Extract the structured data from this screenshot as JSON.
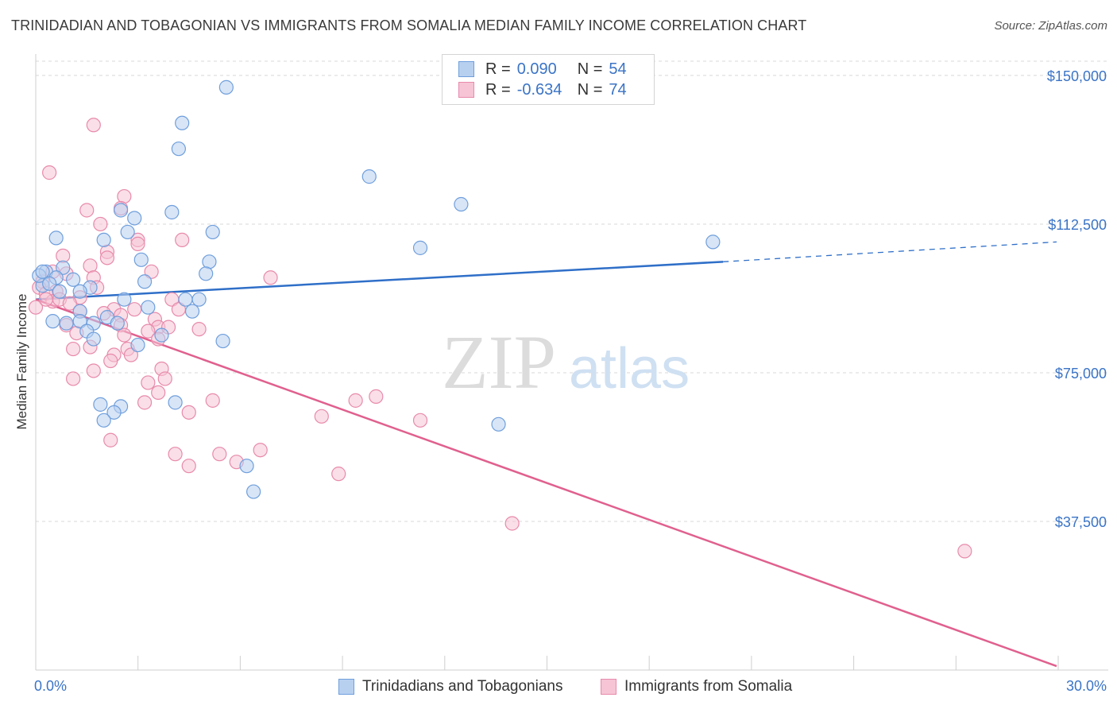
{
  "title": "TRINIDADIAN AND TOBAGONIAN VS IMMIGRANTS FROM SOMALIA MEDIAN FAMILY INCOME CORRELATION CHART",
  "source": "Source: ZipAtlas.com",
  "watermark": {
    "zip": "ZIP",
    "atlas": "atlas"
  },
  "legend": {
    "series1": {
      "r_label": "R =",
      "r_value": "0.090",
      "n_label": "N =",
      "n_value": "54"
    },
    "series2": {
      "r_label": "R =",
      "r_value": "-0.634",
      "n_label": "N =",
      "n_value": "74"
    }
  },
  "bottom_legend": {
    "series1": "Trinidadians and Tobagonians",
    "series2": "Immigrants from Somalia"
  },
  "colors": {
    "blue_fill": "#b8d0f0",
    "blue_stroke": "#6f9fdc",
    "blue_line": "#2f6fc8",
    "pink_fill": "#f6c4d5",
    "pink_stroke": "#e88aab",
    "pink_line": "#e0608e",
    "axis_text": "#3b74c6",
    "grid": "#d8d8d8"
  },
  "chart_data": {
    "type": "scatter",
    "title": "TRINIDADIAN AND TOBAGONIAN VS IMMIGRANTS FROM SOMALIA MEDIAN FAMILY INCOME CORRELATION CHART",
    "xlabel": "",
    "ylabel": "Median Family Income",
    "xlim": [
      0,
      30
    ],
    "ylim": [
      0,
      155000
    ],
    "x_tick_labels": [
      "0.0%",
      "30.0%"
    ],
    "y_ticks": [
      37500,
      75000,
      112500,
      150000
    ],
    "y_tick_labels": [
      "$37,500",
      "$75,000",
      "$112,500",
      "$150,000"
    ],
    "grid": "horizontal dashed",
    "series": [
      {
        "name": "Trinidadians and Tobagonians",
        "color": "blue",
        "trend": {
          "x": [
            0,
            20.2
          ],
          "y": [
            93500,
            103000
          ],
          "dashed_extension_to_x": 30,
          "dashed_end_y": 108000
        },
        "points": [
          [
            5.6,
            147000
          ],
          [
            4.3,
            138000
          ],
          [
            4.2,
            131500
          ],
          [
            9.8,
            124500
          ],
          [
            12.5,
            117500
          ],
          [
            2.5,
            116000
          ],
          [
            4.0,
            115500
          ],
          [
            2.9,
            114000
          ],
          [
            0.6,
            109000
          ],
          [
            2.0,
            108500
          ],
          [
            2.7,
            110500
          ],
          [
            5.2,
            110500
          ],
          [
            11.3,
            106500
          ],
          [
            19.9,
            108000
          ],
          [
            3.1,
            103500
          ],
          [
            5.1,
            103000
          ],
          [
            0.8,
            101500
          ],
          [
            5.0,
            100000
          ],
          [
            0.3,
            100500
          ],
          [
            0.6,
            99000
          ],
          [
            1.1,
            98500
          ],
          [
            3.2,
            98000
          ],
          [
            0.2,
            97000
          ],
          [
            1.6,
            96500
          ],
          [
            1.3,
            95500
          ],
          [
            2.6,
            93500
          ],
          [
            4.4,
            93500
          ],
          [
            4.8,
            93500
          ],
          [
            1.3,
            90500
          ],
          [
            3.3,
            91500
          ],
          [
            4.6,
            90500
          ],
          [
            0.5,
            88000
          ],
          [
            1.3,
            88000
          ],
          [
            2.1,
            89000
          ],
          [
            0.9,
            87500
          ],
          [
            1.7,
            87500
          ],
          [
            2.4,
            87500
          ],
          [
            1.5,
            85500
          ],
          [
            3.7,
            84500
          ],
          [
            1.7,
            83500
          ],
          [
            5.5,
            83000
          ],
          [
            3.0,
            82000
          ],
          [
            1.9,
            67000
          ],
          [
            2.5,
            66500
          ],
          [
            4.1,
            67500
          ],
          [
            2.3,
            65000
          ],
          [
            2.0,
            63000
          ],
          [
            13.6,
            62000
          ],
          [
            6.2,
            51500
          ],
          [
            6.4,
            45000
          ],
          [
            0.1,
            99500
          ],
          [
            0.4,
            97500
          ],
          [
            0.2,
            100500
          ],
          [
            0.7,
            95500
          ]
        ]
      },
      {
        "name": "Immigrants from Somalia",
        "color": "pink",
        "trend": {
          "x": [
            0,
            30
          ],
          "y": [
            93500,
            1000
          ]
        },
        "points": [
          [
            1.7,
            137500
          ],
          [
            0.4,
            125500
          ],
          [
            2.6,
            119500
          ],
          [
            2.5,
            116500
          ],
          [
            1.5,
            116000
          ],
          [
            1.9,
            112500
          ],
          [
            4.3,
            108500
          ],
          [
            3.0,
            108500
          ],
          [
            3.0,
            107500
          ],
          [
            2.1,
            105500
          ],
          [
            0.8,
            104500
          ],
          [
            2.1,
            104000
          ],
          [
            1.6,
            102000
          ],
          [
            0.5,
            100500
          ],
          [
            3.4,
            100500
          ],
          [
            6.9,
            99000
          ],
          [
            1.7,
            99000
          ],
          [
            0.2,
            98000
          ],
          [
            0.1,
            96500
          ],
          [
            1.8,
            96500
          ],
          [
            0.6,
            95500
          ],
          [
            0.3,
            95000
          ],
          [
            1.3,
            94000
          ],
          [
            4.0,
            93500
          ],
          [
            0.5,
            93000
          ],
          [
            0.7,
            93500
          ],
          [
            1.0,
            92500
          ],
          [
            0.0,
            91500
          ],
          [
            2.3,
            91000
          ],
          [
            2.9,
            91000
          ],
          [
            4.2,
            91000
          ],
          [
            1.3,
            90500
          ],
          [
            2.0,
            90000
          ],
          [
            2.5,
            89500
          ],
          [
            3.5,
            88500
          ],
          [
            0.9,
            87000
          ],
          [
            2.5,
            87000
          ],
          [
            3.6,
            86500
          ],
          [
            3.9,
            86500
          ],
          [
            3.3,
            85500
          ],
          [
            4.8,
            86000
          ],
          [
            1.2,
            85000
          ],
          [
            2.6,
            84500
          ],
          [
            3.6,
            83500
          ],
          [
            1.6,
            81500
          ],
          [
            1.1,
            81000
          ],
          [
            2.7,
            81000
          ],
          [
            2.3,
            79500
          ],
          [
            2.8,
            79500
          ],
          [
            2.2,
            78000
          ],
          [
            3.7,
            76000
          ],
          [
            1.7,
            75500
          ],
          [
            1.1,
            73500
          ],
          [
            3.8,
            73500
          ],
          [
            3.3,
            72500
          ],
          [
            3.6,
            70000
          ],
          [
            10.0,
            69000
          ],
          [
            9.4,
            68000
          ],
          [
            5.2,
            68000
          ],
          [
            3.2,
            67500
          ],
          [
            4.5,
            65000
          ],
          [
            8.4,
            64000
          ],
          [
            11.3,
            63000
          ],
          [
            2.2,
            58000
          ],
          [
            6.6,
            55500
          ],
          [
            4.1,
            54500
          ],
          [
            5.4,
            54500
          ],
          [
            5.9,
            52500
          ],
          [
            4.5,
            51500
          ],
          [
            8.9,
            49500
          ],
          [
            14.0,
            37000
          ],
          [
            27.3,
            30000
          ],
          [
            0.3,
            93500
          ],
          [
            0.9,
            100000
          ]
        ]
      }
    ]
  }
}
